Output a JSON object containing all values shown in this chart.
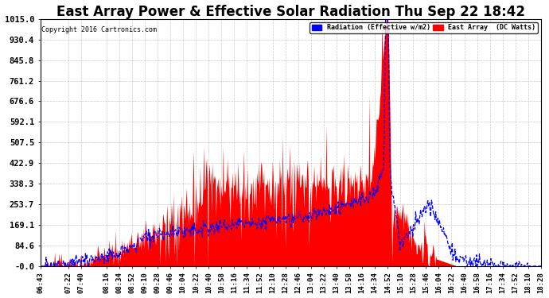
{
  "title": "East Array Power & Effective Solar Radiation Thu Sep 22 18:42",
  "copyright": "Copyright 2016 Cartronics.com",
  "legend_radiation": "Radiation (Effective w/m2)",
  "legend_array": "East Array  (DC Watts)",
  "ymin": 0.0,
  "ymax": 1015.0,
  "yticks": [
    0.0,
    84.6,
    169.1,
    253.7,
    338.3,
    422.9,
    507.5,
    592.1,
    676.6,
    761.2,
    845.8,
    930.4,
    1015.0
  ],
  "ytick_labels": [
    "-0.0",
    "84.6",
    "169.1",
    "253.7",
    "338.3",
    "422.9",
    "507.5",
    "592.1",
    "676.6",
    "761.2",
    "845.8",
    "930.4",
    "1015.0"
  ],
  "background_color": "#ffffff",
  "plot_bg_color": "#ffffff",
  "radiation_color": "#0000ff",
  "array_color": "#ff0000",
  "grid_color": "#bbbbbb",
  "title_color": "#000000",
  "title_fontsize": 12,
  "tick_label_color": "#000000",
  "xlabel_fontsize": 6.5,
  "ylabel_fontsize": 7.5,
  "xtick_times_str": [
    "06:43",
    "07:22",
    "07:40",
    "08:16",
    "08:34",
    "08:52",
    "09:10",
    "09:28",
    "09:46",
    "10:04",
    "10:22",
    "10:40",
    "10:58",
    "11:16",
    "11:34",
    "11:52",
    "12:10",
    "12:28",
    "12:46",
    "13:04",
    "13:22",
    "13:40",
    "13:58",
    "14:16",
    "14:34",
    "14:52",
    "15:10",
    "15:28",
    "15:46",
    "16:04",
    "16:22",
    "16:40",
    "16:58",
    "17:16",
    "17:34",
    "17:52",
    "18:10",
    "18:28"
  ]
}
